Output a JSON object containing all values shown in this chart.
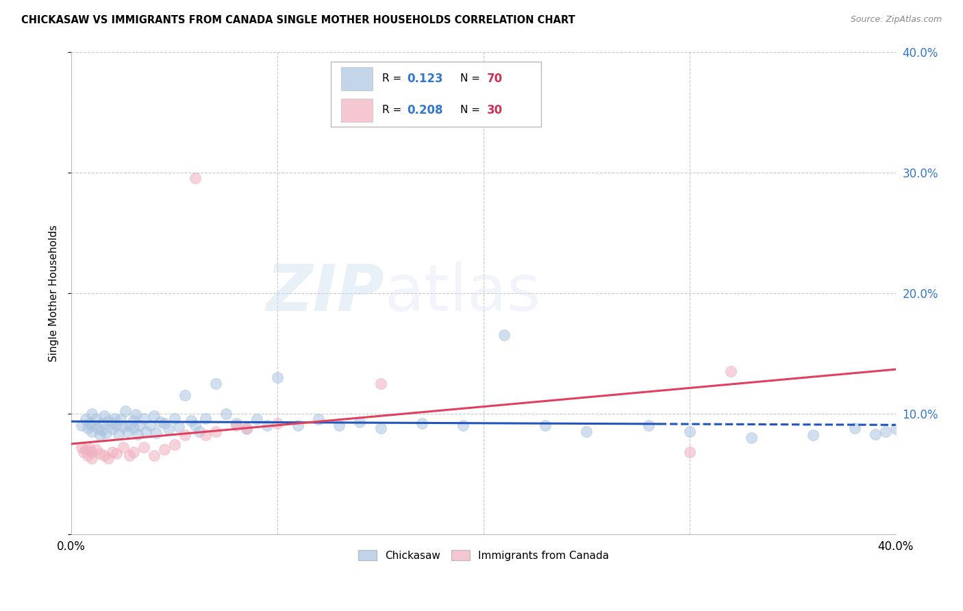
{
  "title": "CHICKASAW VS IMMIGRANTS FROM CANADA SINGLE MOTHER HOUSEHOLDS CORRELATION CHART",
  "source": "Source: ZipAtlas.com",
  "ylabel": "Single Mother Households",
  "xlim": [
    0.0,
    0.4
  ],
  "ylim": [
    0.0,
    0.4
  ],
  "background_color": "#ffffff",
  "grid_color": "#c8c8c8",
  "blue_color": "#aac4e0",
  "pink_color": "#f0b0be",
  "blue_line_color": "#2255bb",
  "pink_line_color": "#e04060",
  "blue_r": "0.123",
  "blue_n": "70",
  "pink_r": "0.208",
  "pink_n": "30",
  "r_color": "#3377cc",
  "n_color": "#cc3355",
  "legend_label_blue": "Chickasaw",
  "legend_label_pink": "Immigrants from Canada",
  "blue_scatter_x": [
    0.005,
    0.007,
    0.008,
    0.009,
    0.01,
    0.01,
    0.01,
    0.012,
    0.013,
    0.014,
    0.015,
    0.015,
    0.016,
    0.017,
    0.018,
    0.02,
    0.02,
    0.021,
    0.022,
    0.023,
    0.024,
    0.025,
    0.026,
    0.027,
    0.028,
    0.03,
    0.03,
    0.031,
    0.032,
    0.033,
    0.035,
    0.036,
    0.038,
    0.04,
    0.041,
    0.043,
    0.045,
    0.047,
    0.05,
    0.052,
    0.055,
    0.058,
    0.06,
    0.062,
    0.065,
    0.07,
    0.075,
    0.08,
    0.085,
    0.09,
    0.095,
    0.1,
    0.11,
    0.12,
    0.13,
    0.14,
    0.15,
    0.17,
    0.19,
    0.21,
    0.23,
    0.25,
    0.28,
    0.3,
    0.33,
    0.36,
    0.38,
    0.39,
    0.395,
    0.4
  ],
  "blue_scatter_y": [
    0.09,
    0.095,
    0.088,
    0.092,
    0.09,
    0.085,
    0.1,
    0.095,
    0.088,
    0.082,
    0.092,
    0.086,
    0.098,
    0.084,
    0.094,
    0.092,
    0.087,
    0.096,
    0.09,
    0.083,
    0.095,
    0.089,
    0.102,
    0.085,
    0.09,
    0.094,
    0.088,
    0.099,
    0.083,
    0.09,
    0.096,
    0.085,
    0.09,
    0.098,
    0.084,
    0.093,
    0.092,
    0.087,
    0.096,
    0.089,
    0.115,
    0.094,
    0.09,
    0.085,
    0.096,
    0.125,
    0.1,
    0.092,
    0.087,
    0.095,
    0.09,
    0.13,
    0.09,
    0.095,
    0.09,
    0.093,
    0.088,
    0.092,
    0.09,
    0.165,
    0.09,
    0.085,
    0.09,
    0.085,
    0.08,
    0.082,
    0.088,
    0.083,
    0.085,
    0.087
  ],
  "pink_scatter_x": [
    0.005,
    0.006,
    0.007,
    0.008,
    0.009,
    0.01,
    0.01,
    0.012,
    0.014,
    0.016,
    0.018,
    0.02,
    0.022,
    0.025,
    0.028,
    0.03,
    0.035,
    0.04,
    0.045,
    0.05,
    0.055,
    0.06,
    0.065,
    0.07,
    0.08,
    0.085,
    0.1,
    0.15,
    0.3,
    0.32
  ],
  "pink_scatter_y": [
    0.072,
    0.068,
    0.07,
    0.065,
    0.071,
    0.068,
    0.063,
    0.07,
    0.067,
    0.065,
    0.063,
    0.068,
    0.067,
    0.072,
    0.065,
    0.068,
    0.072,
    0.065,
    0.07,
    0.074,
    0.082,
    0.295,
    0.082,
    0.085,
    0.09,
    0.088,
    0.092,
    0.125,
    0.068,
    0.135
  ]
}
